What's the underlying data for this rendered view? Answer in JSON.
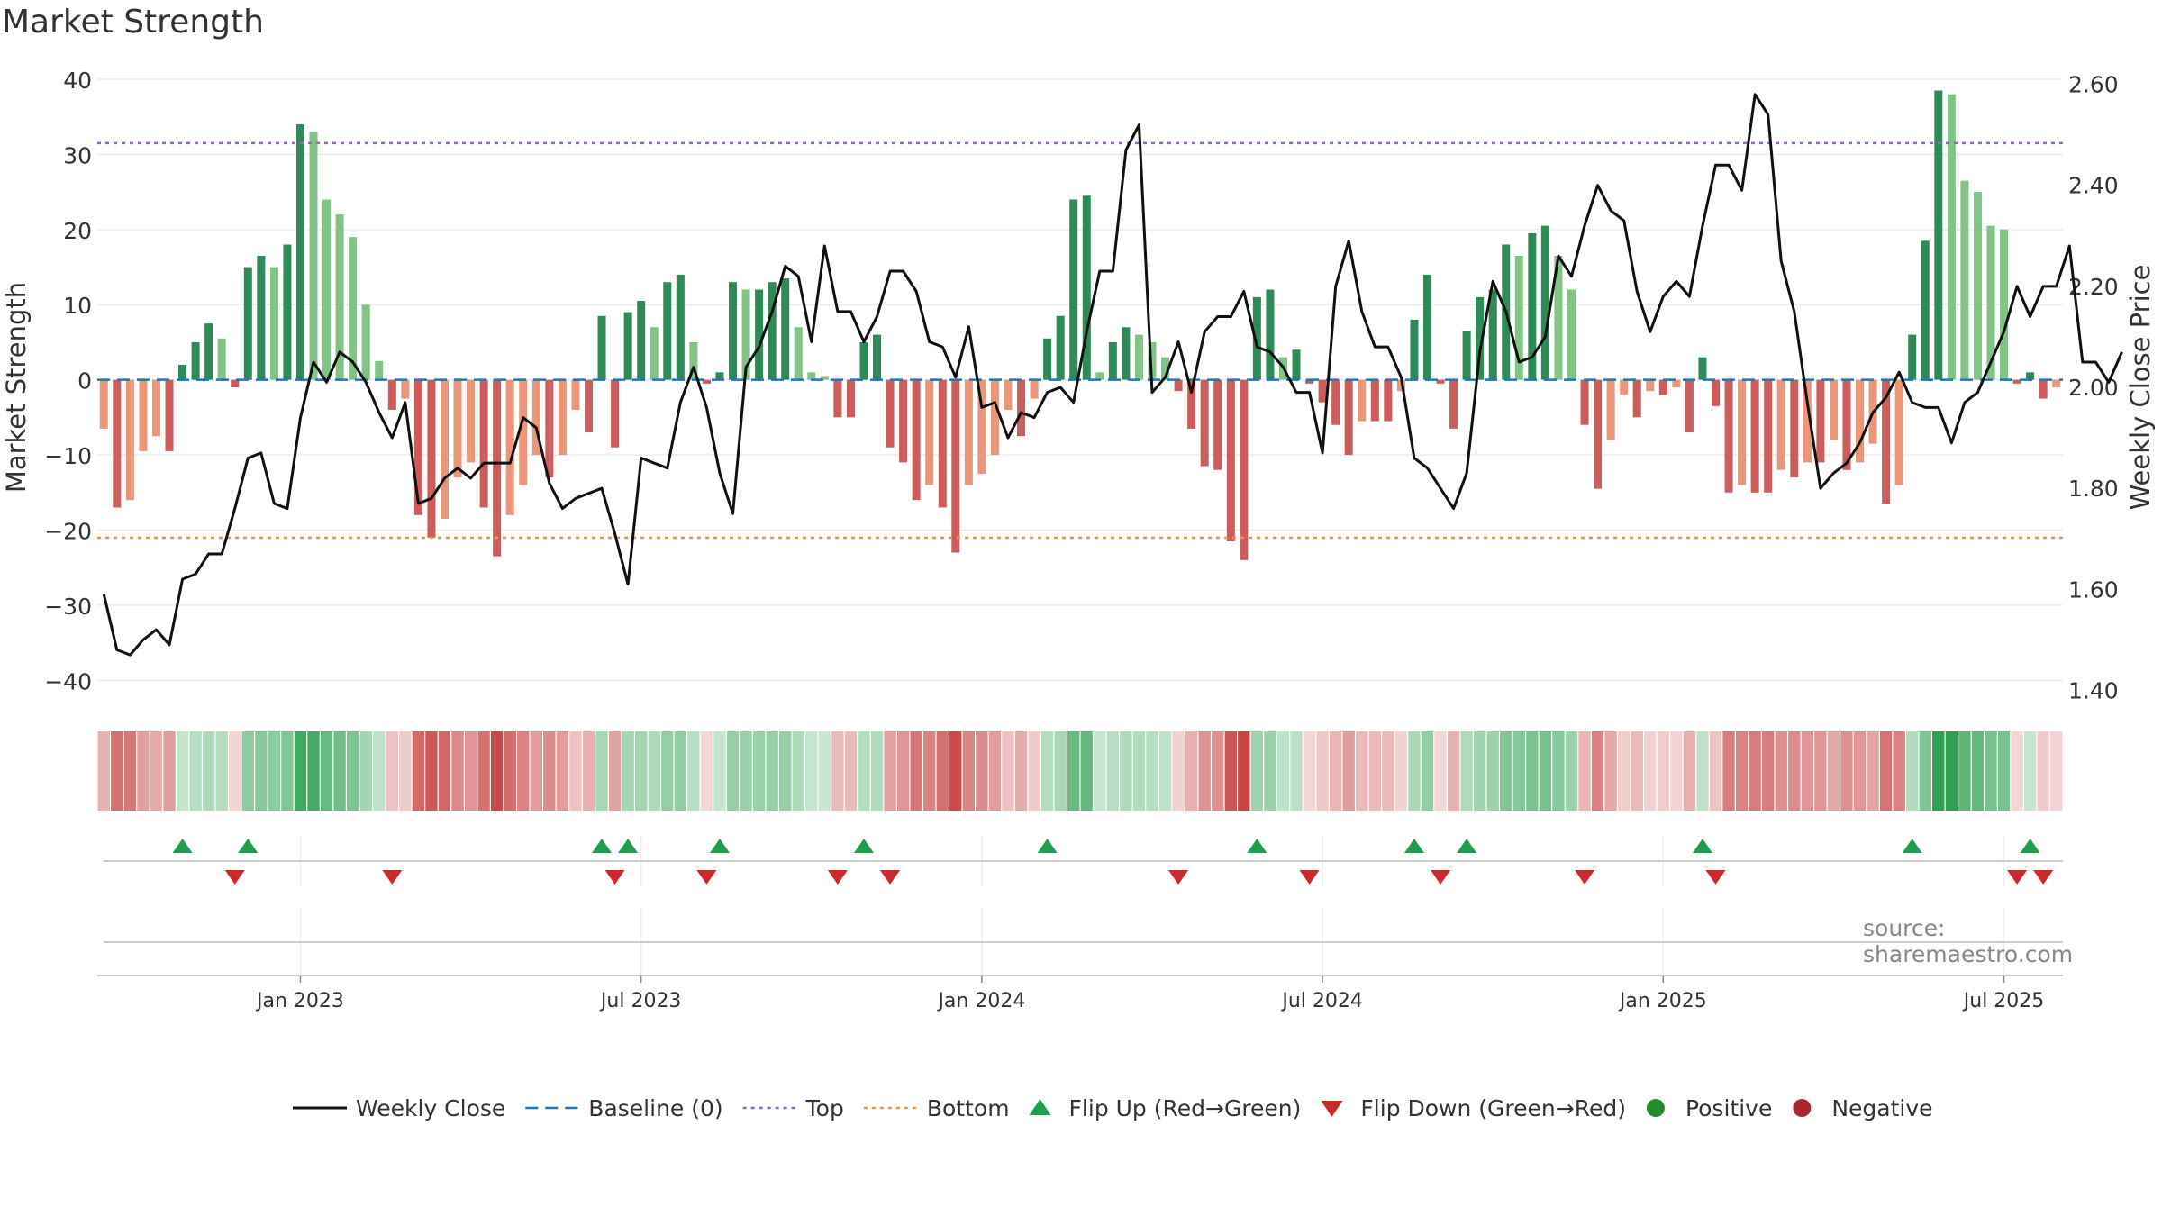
{
  "chart_data": {
    "type": "bar+line",
    "title": "Market Strength",
    "ylabel_left": "Market Strength",
    "ylabel_right": "Weekly Close Price",
    "ylim_left": [
      -42,
      40
    ],
    "ylim_right": [
      1.39,
      2.61
    ],
    "yticks_left": [
      40,
      30,
      20,
      10,
      0,
      -10,
      -20,
      -30,
      -40
    ],
    "yticks_left_labels": [
      "40",
      "30",
      "20",
      "10",
      "0",
      "−10",
      "−20",
      "−30",
      "−40"
    ],
    "yticks_right": [
      2.6,
      2.4,
      2.2,
      2.0,
      1.8,
      1.6,
      1.4
    ],
    "yticks_right_labels": [
      "2.60",
      "2.40",
      "2.20",
      "2.00",
      "1.80",
      "1.60",
      "1.40"
    ],
    "x_ticks": [
      {
        "label": "Jan 2023",
        "week": 15
      },
      {
        "label": "Jul 2023",
        "week": 41
      },
      {
        "label": "Jan 2024",
        "week": 67
      },
      {
        "label": "Jul 2024",
        "week": 93
      },
      {
        "label": "Jan 2025",
        "week": 119
      },
      {
        "label": "Jul 2025",
        "week": 145
      }
    ],
    "top_line": 31.5,
    "bottom_line": -21,
    "strength": [
      -6.5,
      -17,
      -16,
      -9.5,
      -7.5,
      -9.5,
      2,
      5,
      7.5,
      5.5,
      -1,
      15,
      16.5,
      15,
      18,
      34,
      33,
      24,
      22,
      19,
      10,
      2.5,
      -4,
      -2.5,
      -18,
      -21,
      -18.5,
      -13,
      -11,
      -17,
      -23.5,
      -18,
      -14,
      -10,
      -13,
      -10,
      -4,
      -7,
      8.5,
      -9,
      9,
      10.5,
      7,
      13,
      14,
      5,
      -0.5,
      1,
      13,
      12,
      12,
      13,
      13.5,
      7,
      1,
      0.5,
      -5,
      -5,
      5,
      6,
      -9,
      -11,
      -16,
      -14,
      -17,
      -23,
      -14,
      -12.5,
      -10,
      -4,
      -7.5,
      -2.5,
      5.5,
      8.5,
      24,
      24.5,
      1,
      5,
      7,
      6,
      5,
      3,
      -1.5,
      -6.5,
      -11.5,
      -12,
      -21.5,
      -24,
      11,
      12,
      3,
      4,
      -0.5,
      -3,
      -6,
      -10,
      -5.5,
      -5.5,
      -5.5,
      -1.5,
      8,
      14,
      -0.5,
      -6.5,
      6.5,
      11,
      12,
      18,
      16.5,
      19.5,
      20.5,
      16.5,
      12,
      -6,
      -14.5,
      -8,
      -2,
      -5,
      -1.5,
      -2,
      -1,
      -7,
      3,
      -3.5,
      -15,
      -14,
      -15,
      -15,
      -12,
      -13,
      -11,
      -11,
      -8,
      -12,
      -11,
      -8.5,
      -16.5,
      -14,
      6,
      18.5,
      38.5,
      38,
      26.5,
      25,
      20.5,
      20,
      -0.5,
      1,
      -2.5,
      -1
    ],
    "weekly_close": [
      1.59,
      1.48,
      1.47,
      1.5,
      1.52,
      1.49,
      1.62,
      1.63,
      1.67,
      1.67,
      1.76,
      1.86,
      1.87,
      1.77,
      1.76,
      1.94,
      2.05,
      2.01,
      2.07,
      2.05,
      2.01,
      1.95,
      1.9,
      1.97,
      1.77,
      1.78,
      1.82,
      1.84,
      1.82,
      1.85,
      1.85,
      1.85,
      1.94,
      1.92,
      1.81,
      1.76,
      1.78,
      1.79,
      1.8,
      1.71,
      1.61,
      1.86,
      1.85,
      1.84,
      1.97,
      2.04,
      1.96,
      1.83,
      1.75,
      2.04,
      2.08,
      2.15,
      2.24,
      2.22,
      2.09,
      2.28,
      2.15,
      2.15,
      2.09,
      2.14,
      2.23,
      2.23,
      2.19,
      2.09,
      2.08,
      2.02,
      2.12,
      1.96,
      1.97,
      1.9,
      1.95,
      1.94,
      1.99,
      2.0,
      1.97,
      2.11,
      2.23,
      2.23,
      2.47,
      2.52,
      1.99,
      2.02,
      2.09,
      1.99,
      2.11,
      2.14,
      2.14,
      2.19,
      2.08,
      2.07,
      2.04,
      1.99,
      1.99,
      1.87,
      2.2,
      2.29,
      2.15,
      2.08,
      2.08,
      2.02,
      1.86,
      1.84,
      1.8,
      1.76,
      1.83,
      2.07,
      2.21,
      2.15,
      2.05,
      2.06,
      2.1,
      2.26,
      2.22,
      2.32,
      2.4,
      2.35,
      2.33,
      2.19,
      2.11,
      2.18,
      2.21,
      2.18,
      2.32,
      2.44,
      2.44,
      2.39,
      2.58,
      2.54,
      2.25,
      2.15,
      1.97,
      1.8,
      1.83,
      1.85,
      1.89,
      1.95,
      1.98,
      2.03,
      1.97,
      1.96,
      1.96,
      1.89,
      1.97,
      1.99,
      2.05,
      2.11,
      2.2,
      2.14,
      2.2,
      2.2,
      2.28,
      2.05,
      2.05,
      2.01,
      2.07
    ]
  },
  "legend": [
    {
      "label": "Weekly Close",
      "symbol": "line",
      "color": "#111111"
    },
    {
      "label": "Baseline (0)",
      "symbol": "dash",
      "color": "#1f77b4"
    },
    {
      "label": "Top",
      "symbol": "dot",
      "color": "#9467bd"
    },
    {
      "label": "Bottom",
      "symbol": "dot",
      "color": "#e8964a"
    },
    {
      "label": "Flip Up (Red→Green)",
      "symbol": "tri-up",
      "color": "#1e9e4e"
    },
    {
      "label": "Flip Down (Green→Red)",
      "symbol": "tri-down",
      "color": "#cc2a2a"
    },
    {
      "label": "Positive",
      "symbol": "circle",
      "color": "#238b2e"
    },
    {
      "label": "Negative",
      "symbol": "circle",
      "color": "#a8262d"
    }
  ],
  "source": "source: sharemaestro.com"
}
